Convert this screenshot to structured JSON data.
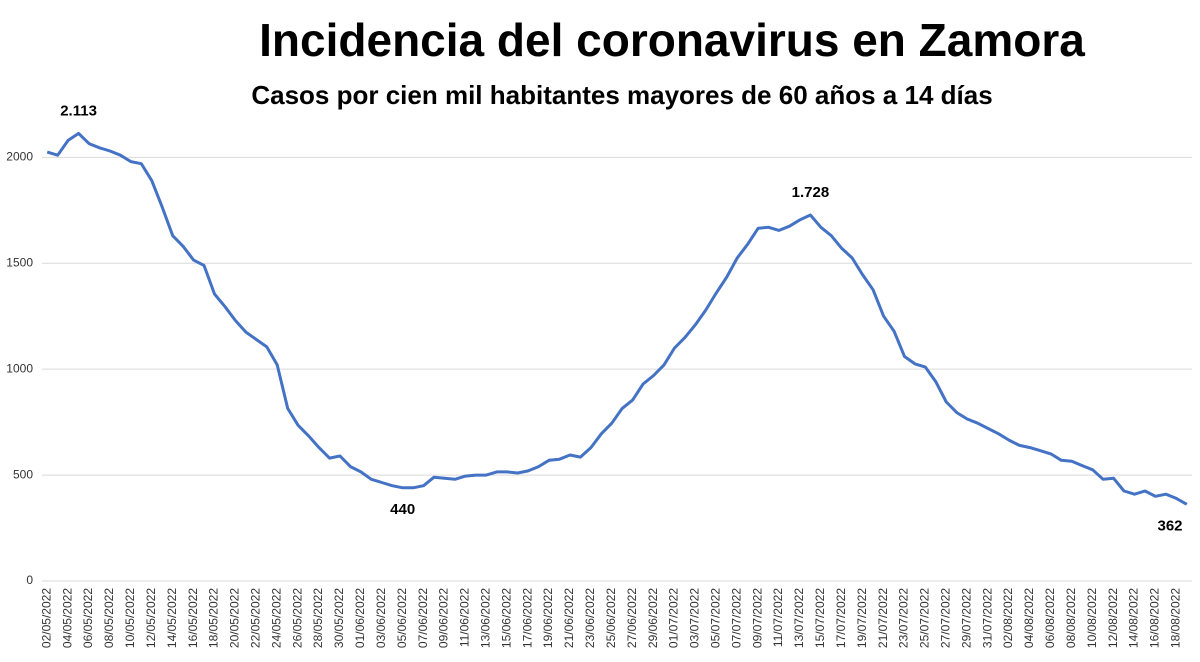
{
  "chart_data": {
    "type": "line",
    "title": "Incidencia del coronavirus en Zamora",
    "subtitle": "Casos por cien mil habitantes mayores de 60 años a 14 días",
    "categories": [
      "02/05/2022",
      null,
      "04/05/2022",
      null,
      "06/05/2022",
      null,
      "08/05/2022",
      null,
      "10/05/2022",
      null,
      "12/05/2022",
      null,
      "14/05/2022",
      null,
      "16/05/2022",
      null,
      "18/05/2022",
      null,
      "20/05/2022",
      null,
      "22/05/2022",
      null,
      "24/05/2022",
      null,
      "26/05/2022",
      null,
      "28/05/2022",
      null,
      "30/05/2022",
      null,
      "01/06/2022",
      null,
      "03/06/2022",
      null,
      "05/06/2022",
      null,
      "07/06/2022",
      null,
      "09/06/2022",
      null,
      "11/06/2022",
      null,
      "13/06/2022",
      null,
      "15/06/2022",
      null,
      "17/06/2022",
      null,
      "19/06/2022",
      null,
      "21/06/2022",
      null,
      "23/06/2022",
      null,
      "25/06/2022",
      null,
      "27/06/2022",
      null,
      "29/06/2022",
      null,
      "01/07/2022",
      null,
      "03/07/2022",
      null,
      "05/07/2022",
      null,
      "07/07/2022",
      null,
      "09/07/2022",
      null,
      "11/07/2022",
      null,
      "13/07/2022",
      null,
      "15/07/2022",
      null,
      "17/07/2022",
      null,
      "19/07/2022",
      null,
      "21/07/2022",
      null,
      "23/07/2022",
      null,
      "25/07/2022",
      null,
      "27/07/2022",
      null,
      "29/07/2022",
      null,
      "31/07/2022",
      null,
      "02/08/2022",
      null,
      "04/08/2022",
      null,
      "06/08/2022",
      null,
      "08/08/2022",
      null,
      "10/08/2022",
      null,
      "12/08/2022",
      null,
      "14/08/2022",
      null,
      "16/08/2022",
      null,
      "18/08/2022",
      null
    ],
    "series": [
      {
        "color": "#4472c4",
        "values": [
          2025,
          2010,
          2080,
          2113,
          2065,
          2045,
          2030,
          2010,
          1980,
          1970,
          1890,
          1765,
          1630,
          1580,
          1515,
          1490,
          1355,
          1295,
          1230,
          1175,
          1140,
          1105,
          1020,
          815,
          735,
          685,
          630,
          580,
          590,
          540,
          515,
          480,
          465,
          450,
          440,
          440,
          450,
          490,
          485,
          480,
          495,
          500,
          500,
          515,
          515,
          510,
          520,
          540,
          570,
          575,
          595,
          585,
          630,
          695,
          745,
          815,
          855,
          930,
          970,
          1020,
          1100,
          1150,
          1210,
          1280,
          1360,
          1435,
          1525,
          1590,
          1665,
          1670,
          1655,
          1675,
          1705,
          1728,
          1670,
          1630,
          1570,
          1525,
          1445,
          1375,
          1250,
          1180,
          1060,
          1025,
          1010,
          940,
          845,
          795,
          765,
          745,
          720,
          695,
          665,
          640,
          630,
          615,
          600,
          570,
          565,
          545,
          525,
          480,
          485,
          425,
          410,
          425,
          400,
          410,
          390,
          362
        ],
        "value_labels": [
          null,
          null,
          null,
          "2.113",
          null,
          null,
          null,
          null,
          null,
          null,
          null,
          null,
          null,
          null,
          null,
          null,
          null,
          null,
          null,
          null,
          null,
          null,
          null,
          null,
          null,
          null,
          null,
          null,
          null,
          null,
          null,
          null,
          null,
          null,
          "440",
          null,
          null,
          null,
          null,
          null,
          null,
          null,
          null,
          null,
          null,
          null,
          null,
          null,
          null,
          null,
          null,
          null,
          null,
          null,
          null,
          null,
          null,
          null,
          null,
          null,
          null,
          null,
          null,
          null,
          null,
          null,
          null,
          null,
          null,
          null,
          null,
          null,
          null,
          "1.728",
          null,
          null,
          null,
          null,
          null,
          null,
          null,
          null,
          null,
          null,
          null,
          null,
          null,
          null,
          null,
          null,
          null,
          null,
          null,
          null,
          null,
          null,
          null,
          null,
          null,
          null,
          null,
          null,
          null,
          null,
          null,
          null,
          null,
          null,
          null,
          "362"
        ]
      }
    ],
    "ylim": [
      0,
      2200
    ],
    "yticks": [
      0,
      500,
      1000,
      1500,
      2000
    ],
    "grid": true
  }
}
